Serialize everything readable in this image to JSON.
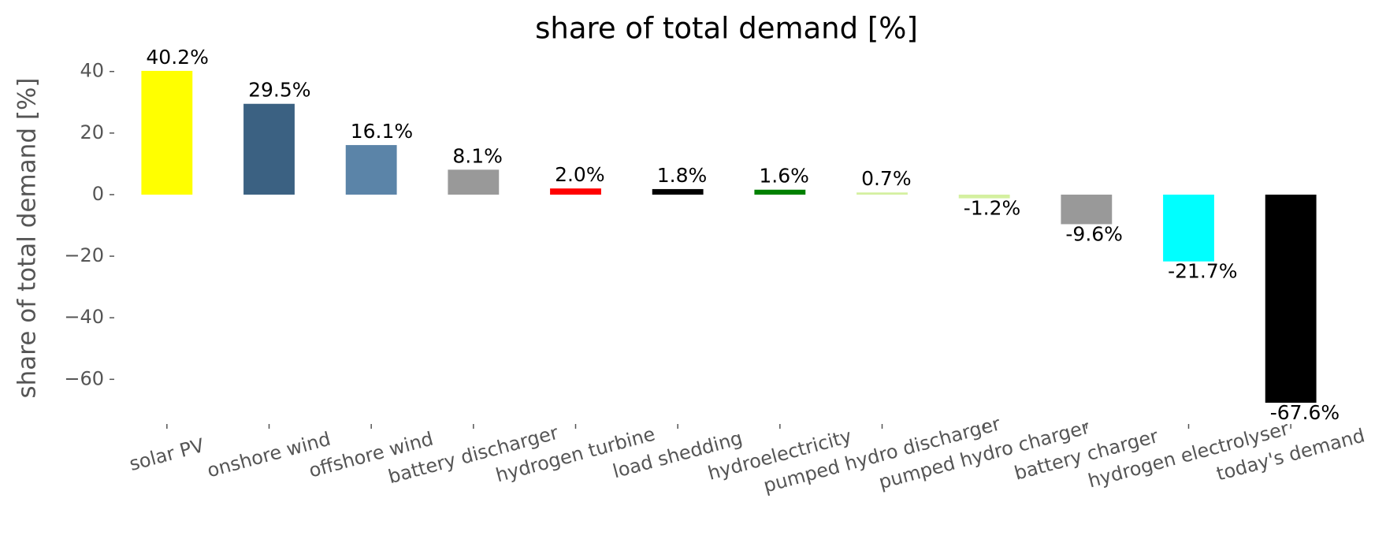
{
  "chart_data": {
    "type": "bar",
    "title": "share of total demand [%]",
    "y_label": "share of total demand [%]",
    "categories": [
      "solar PV",
      "onshore wind",
      "offshore wind",
      "battery discharger",
      "hydrogen turbine",
      "load shedding",
      "hydroelectricity",
      "pumped hydro discharger",
      "pumped hydro charger",
      "battery charger",
      "hydrogen electrolyser",
      "today's demand"
    ],
    "values": [
      40.2,
      29.5,
      16.1,
      8.1,
      2.0,
      1.8,
      1.6,
      0.7,
      -1.2,
      -9.6,
      -21.7,
      -67.6
    ],
    "value_labels": [
      "40.2%",
      "29.5%",
      "16.1%",
      "8.1%",
      "2.0%",
      "1.8%",
      "1.6%",
      "0.7%",
      "-1.2%",
      "-9.6%",
      "-21.7%",
      "-67.6%"
    ],
    "colors": [
      "#ffff00",
      "#3b6182",
      "#5b84a8",
      "#999999",
      "#ff0000",
      "#000000",
      "#008000",
      "#d4f0a0",
      "#d4f0a0",
      "#999999",
      "#00ffff",
      "#000000"
    ],
    "ylim": [
      -74,
      43
    ],
    "yticks": [
      {
        "value": -60,
        "label": "−60"
      },
      {
        "value": -40,
        "label": "−40"
      },
      {
        "value": -20,
        "label": "−20"
      },
      0,
      20,
      40
    ]
  }
}
